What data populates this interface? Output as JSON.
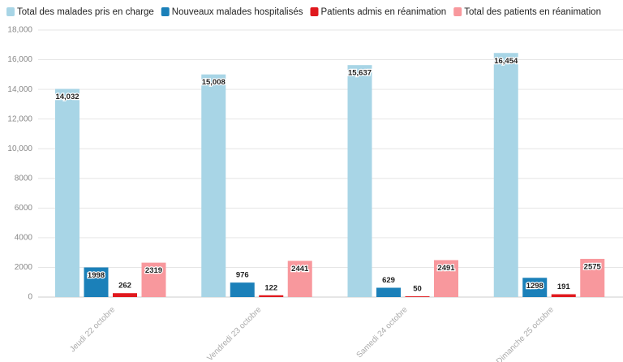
{
  "chart_data": {
    "type": "bar",
    "categories": [
      "Jeudi 22 octobre",
      "Vendredi 23 octobre",
      "Samedi 24 octobre",
      "Dimanche 25 octobre"
    ],
    "series": [
      {
        "name": "Total des malades pris en charge",
        "color": "#a8d5e6",
        "values": [
          14032,
          15008,
          15637,
          16454
        ],
        "value_labels": [
          "14,032",
          "15,008",
          "15,637",
          "16,454"
        ]
      },
      {
        "name": "Nouveaux malades hospitalisés",
        "color": "#1b80b9",
        "values": [
          1998,
          976,
          629,
          1298
        ]
      },
      {
        "name": "Patients admis en réanimation",
        "color": "#e0191e",
        "values": [
          262,
          122,
          50,
          191
        ]
      },
      {
        "name": "Total des patients en réanimation",
        "color": "#f8989d",
        "values": [
          2319,
          2441,
          2491,
          2575
        ]
      }
    ],
    "ylim": [
      0,
      18000
    ],
    "yticks": [
      0,
      2000,
      4000,
      6000,
      8000,
      {
        "value": 10000,
        "label": "10,000"
      },
      {
        "value": 12000,
        "label": "12,000"
      },
      {
        "value": 14000,
        "label": "14,000"
      },
      {
        "value": 16000,
        "label": "16,000"
      },
      {
        "value": 18000,
        "label": "18,000"
      }
    ],
    "grid": true
  }
}
